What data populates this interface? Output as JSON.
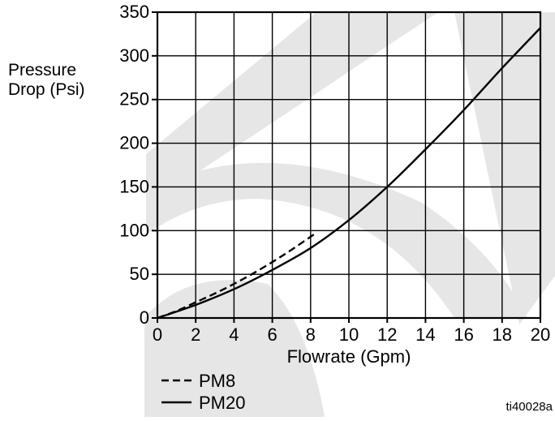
{
  "chart_data": {
    "type": "line",
    "title": "",
    "xlabel": "Flowrate (Gpm)",
    "ylabel": [
      "Pressure",
      "Drop (Psi)"
    ],
    "xlim": [
      0,
      20
    ],
    "ylim": [
      0,
      350
    ],
    "xticks": [
      0,
      2,
      4,
      6,
      8,
      10,
      12,
      14,
      16,
      18,
      20
    ],
    "yticks": [
      0,
      50,
      100,
      150,
      200,
      250,
      300,
      350
    ],
    "grid": true,
    "legend_position": "bottom-left",
    "series": [
      {
        "name": "PM8",
        "style": "dashed",
        "color": "#000000",
        "x": [
          0,
          1,
          2,
          3,
          4,
          5,
          6,
          7,
          8.2
        ],
        "y": [
          0,
          8,
          18,
          28,
          39,
          51,
          64,
          78,
          96
        ]
      },
      {
        "name": "PM20",
        "style": "solid",
        "color": "#000000",
        "x": [
          0,
          2,
          4,
          6,
          8,
          10,
          12,
          14,
          16,
          18,
          20
        ],
        "y": [
          0,
          15,
          33,
          55,
          80,
          112,
          150,
          193,
          238,
          286,
          332
        ]
      }
    ]
  },
  "figure_id": "ti40028a",
  "colors": {
    "watermark": "#e6e6e6",
    "line": "#000000",
    "grid": "#000000"
  }
}
